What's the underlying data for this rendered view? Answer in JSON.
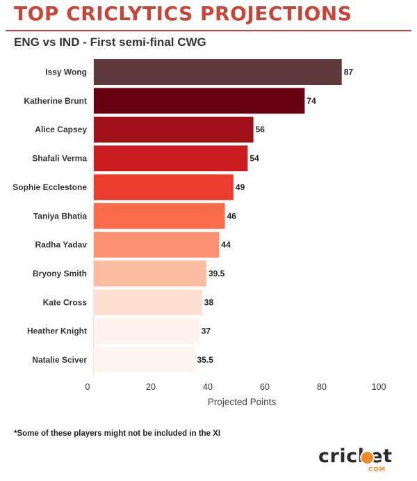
{
  "header": {
    "title": "TOP CRICLYTICS PROJECTIONS",
    "subtitle": "ENG vs IND - First semi-final CWG"
  },
  "chart_data": {
    "type": "bar",
    "orientation": "horizontal",
    "categories": [
      "Issy Wong",
      "Katherine Brunt",
      "Alice Capsey",
      "Shafali Verma",
      "Sophie Ecclestone",
      "Taniya Bhatia",
      "Radha Yadav",
      "Bryony Smith",
      "Kate Cross",
      "Heather Knight",
      "Natalie Sciver"
    ],
    "values": [
      87,
      74,
      56,
      54,
      49,
      46,
      44,
      39.5,
      38,
      37,
      35.5
    ],
    "value_labels": [
      "87",
      "74",
      "56",
      "54",
      "49",
      "46",
      "44",
      "39.5",
      "38",
      "37",
      "35.5"
    ],
    "colors": [
      "#5e383a",
      "#670010",
      "#a10f19",
      "#cb1c1f",
      "#ec3c2e",
      "#fb6c4a",
      "#fc9272",
      "#fcbba1",
      "#fde0d2",
      "#fff2ec",
      "#fff5f0"
    ],
    "xlabel": "Projected Points",
    "xlim": [
      0,
      100
    ],
    "xticks": [
      0,
      20,
      40,
      60,
      80,
      100
    ],
    "grid": false,
    "legend": "none"
  },
  "footer": {
    "note": "*Some of these players might not be included in the XI",
    "logo_word": "cricket",
    "logo_sub": "COM"
  }
}
